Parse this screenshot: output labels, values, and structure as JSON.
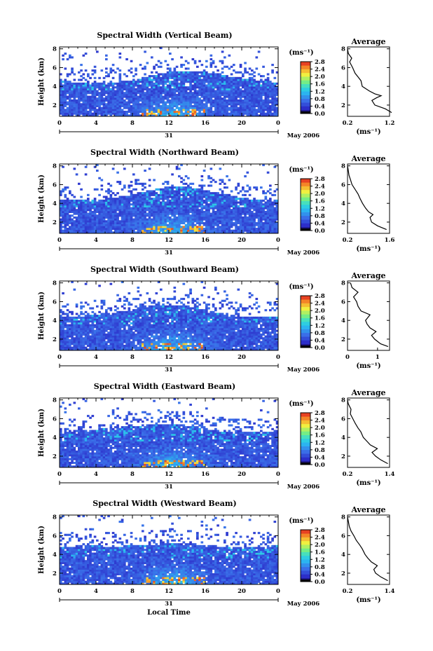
{
  "chart_data": [
    {
      "type": "heatmap",
      "title": "Spectral Width (Vertical Beam)",
      "ylabel": "Height (km)",
      "yticks": [
        "2",
        "4",
        "6",
        "8"
      ],
      "ylim": [
        0.8,
        8.2
      ],
      "xlim": [
        0,
        24
      ],
      "xticks": [
        "0",
        "4",
        "8",
        "12",
        "16",
        "20",
        "0"
      ],
      "date_day": "31",
      "date_month": "May 2006",
      "xlabel": "",
      "colorbar": {
        "unit": "(ms⁻¹)",
        "ticks": [
          "2.8",
          "2.4",
          "2.0",
          "1.6",
          "1.2",
          "0.8",
          "0.4",
          "0.0"
        ],
        "range": [
          0,
          2.8
        ]
      },
      "average": {
        "title": "Average",
        "xticks": [
          "0.2",
          "1.2"
        ],
        "xlim": [
          0.2,
          1.2
        ],
        "yticks": [
          "2",
          "4",
          "6",
          "8"
        ],
        "ylim": [
          0.8,
          8.2
        ],
        "xunit": "(ms⁻¹)",
        "profile": [
          [
            1.25,
            1.2
          ],
          [
            1.1,
            1.6
          ],
          [
            0.85,
            2.0
          ],
          [
            0.78,
            2.5
          ],
          [
            0.9,
            2.8
          ],
          [
            1.0,
            3.0
          ],
          [
            0.85,
            3.2
          ],
          [
            0.72,
            3.5
          ],
          [
            0.55,
            4.0
          ],
          [
            0.52,
            4.6
          ],
          [
            0.45,
            5.0
          ],
          [
            0.38,
            5.4
          ],
          [
            0.32,
            6.0
          ],
          [
            0.25,
            6.6
          ],
          [
            0.3,
            7.0
          ],
          [
            0.22,
            7.5
          ],
          [
            0.2,
            8.0
          ]
        ]
      }
    },
    {
      "type": "heatmap",
      "title": "Spectral Width (Northward Beam)",
      "ylabel": "Height (km)",
      "yticks": [
        "2",
        "4",
        "6",
        "8"
      ],
      "ylim": [
        0.8,
        8.2
      ],
      "xlim": [
        0,
        24
      ],
      "xticks": [
        "0",
        "4",
        "8",
        "12",
        "16",
        "20",
        "0"
      ],
      "date_day": "31",
      "date_month": "May 2006",
      "xlabel": "",
      "colorbar": {
        "unit": "(ms⁻¹)",
        "ticks": [
          "2.8",
          "2.4",
          "2.0",
          "1.6",
          "1.2",
          "0.8",
          "0.4",
          "0.0"
        ],
        "range": [
          0,
          2.8
        ]
      },
      "average": {
        "title": "Average",
        "xticks": [
          "0.2",
          "1.6"
        ],
        "xlim": [
          0.2,
          1.6
        ],
        "yticks": [
          "2",
          "4",
          "6",
          "8"
        ],
        "ylim": [
          0.8,
          8.2
        ],
        "xunit": "(ms⁻¹)",
        "profile": [
          [
            1.5,
            1.2
          ],
          [
            1.2,
            1.6
          ],
          [
            1.0,
            2.0
          ],
          [
            0.95,
            2.5
          ],
          [
            1.05,
            2.8
          ],
          [
            0.9,
            3.1
          ],
          [
            0.8,
            3.5
          ],
          [
            0.7,
            4.0
          ],
          [
            0.62,
            4.5
          ],
          [
            0.55,
            5.0
          ],
          [
            0.45,
            5.5
          ],
          [
            0.35,
            6.0
          ],
          [
            0.3,
            6.5
          ],
          [
            0.25,
            7.0
          ],
          [
            0.22,
            7.6
          ],
          [
            0.2,
            8.0
          ]
        ]
      }
    },
    {
      "type": "heatmap",
      "title": "Spectral Width (Southward Beam)",
      "ylabel": "Height (km)",
      "yticks": [
        "2",
        "4",
        "6",
        "8"
      ],
      "ylim": [
        0.8,
        8.2
      ],
      "xlim": [
        0,
        24
      ],
      "xticks": [
        "0",
        "4",
        "8",
        "12",
        "16",
        "20",
        "0"
      ],
      "date_day": "31",
      "date_month": "May 2006",
      "xlabel": "",
      "colorbar": {
        "unit": "(ms⁻¹)",
        "ticks": [
          "2.8",
          "2.4",
          "2.0",
          "1.6",
          "1.2",
          "0.8",
          "0.4",
          "0.0"
        ],
        "range": [
          0,
          2.8
        ]
      },
      "average": {
        "title": "Average",
        "xticks": [
          "0",
          "1"
        ],
        "xlim": [
          0,
          1.4
        ],
        "yticks": [
          "2",
          "4",
          "6",
          "8"
        ],
        "ylim": [
          0.8,
          8.2
        ],
        "xunit": "(ms⁻¹)",
        "profile": [
          [
            1.35,
            1.2
          ],
          [
            1.1,
            1.5
          ],
          [
            0.9,
            2.0
          ],
          [
            0.8,
            2.4
          ],
          [
            0.95,
            2.8
          ],
          [
            0.75,
            3.2
          ],
          [
            0.65,
            3.6
          ],
          [
            0.6,
            4.0
          ],
          [
            0.75,
            4.6
          ],
          [
            0.45,
            5.0
          ],
          [
            0.35,
            5.5
          ],
          [
            0.3,
            6.0
          ],
          [
            0.2,
            6.5
          ],
          [
            0.35,
            7.0
          ],
          [
            0.15,
            7.5
          ],
          [
            0.1,
            8.0
          ]
        ]
      }
    },
    {
      "type": "heatmap",
      "title": "Spectral Width (Eastward Beam)",
      "ylabel": "Height (km)",
      "yticks": [
        "2",
        "4",
        "6",
        "8"
      ],
      "ylim": [
        0.8,
        8.2
      ],
      "xlim": [
        0,
        24
      ],
      "xticks": [
        "0",
        "4",
        "8",
        "12",
        "16",
        "20",
        "0"
      ],
      "date_day": "31",
      "date_month": "May 2006",
      "xlabel": "",
      "colorbar": {
        "unit": "(ms⁻¹)",
        "ticks": [
          "2.8",
          "2.4",
          "2.0",
          "1.6",
          "1.2",
          "0.8",
          "0.4",
          "0.0"
        ],
        "range": [
          0,
          2.8
        ]
      },
      "average": {
        "title": "Average",
        "xticks": [
          "0.2",
          "1.4"
        ],
        "xlim": [
          0.2,
          1.4
        ],
        "yticks": [
          "2",
          "4",
          "6",
          "8"
        ],
        "ylim": [
          0.8,
          8.2
        ],
        "xunit": "(ms⁻¹)",
        "profile": [
          [
            1.35,
            1.2
          ],
          [
            1.15,
            1.6
          ],
          [
            1.0,
            2.0
          ],
          [
            0.9,
            2.4
          ],
          [
            1.05,
            2.8
          ],
          [
            0.85,
            3.2
          ],
          [
            0.75,
            3.6
          ],
          [
            0.65,
            4.0
          ],
          [
            0.58,
            4.6
          ],
          [
            0.5,
            5.0
          ],
          [
            0.42,
            5.5
          ],
          [
            0.35,
            6.0
          ],
          [
            0.28,
            6.5
          ],
          [
            0.3,
            7.0
          ],
          [
            0.22,
            7.6
          ],
          [
            0.2,
            8.0
          ]
        ]
      }
    },
    {
      "type": "heatmap",
      "title": "Spectral Width (Westward Beam)",
      "ylabel": "Height (km)",
      "yticks": [
        "2",
        "4",
        "6",
        "8"
      ],
      "ylim": [
        0.8,
        8.2
      ],
      "xlim": [
        0,
        24
      ],
      "xticks": [
        "0",
        "4",
        "8",
        "12",
        "16",
        "20",
        "0"
      ],
      "date_day": "31",
      "date_month": "May 2006",
      "xlabel": "Local Time",
      "colorbar": {
        "unit": "(ms⁻¹)",
        "ticks": [
          "2.8",
          "2.4",
          "2.0",
          "1.6",
          "1.2",
          "0.8",
          "0.4",
          "0.0"
        ],
        "range": [
          0,
          2.8
        ]
      },
      "average": {
        "title": "Average",
        "xticks": [
          "0.2",
          "1.4"
        ],
        "xlim": [
          0.2,
          1.4
        ],
        "yticks": [
          "2",
          "4",
          "6",
          "8"
        ],
        "ylim": [
          0.8,
          8.2
        ],
        "xunit": "(ms⁻¹)",
        "profile": [
          [
            1.35,
            1.2
          ],
          [
            1.15,
            1.6
          ],
          [
            1.0,
            2.0
          ],
          [
            0.95,
            2.4
          ],
          [
            1.05,
            2.8
          ],
          [
            0.88,
            3.2
          ],
          [
            0.78,
            3.6
          ],
          [
            0.7,
            4.0
          ],
          [
            0.62,
            4.6
          ],
          [
            0.55,
            5.0
          ],
          [
            0.45,
            5.5
          ],
          [
            0.38,
            6.0
          ],
          [
            0.3,
            6.5
          ],
          [
            0.25,
            7.0
          ],
          [
            0.22,
            7.6
          ],
          [
            0.2,
            8.0
          ]
        ]
      }
    }
  ]
}
